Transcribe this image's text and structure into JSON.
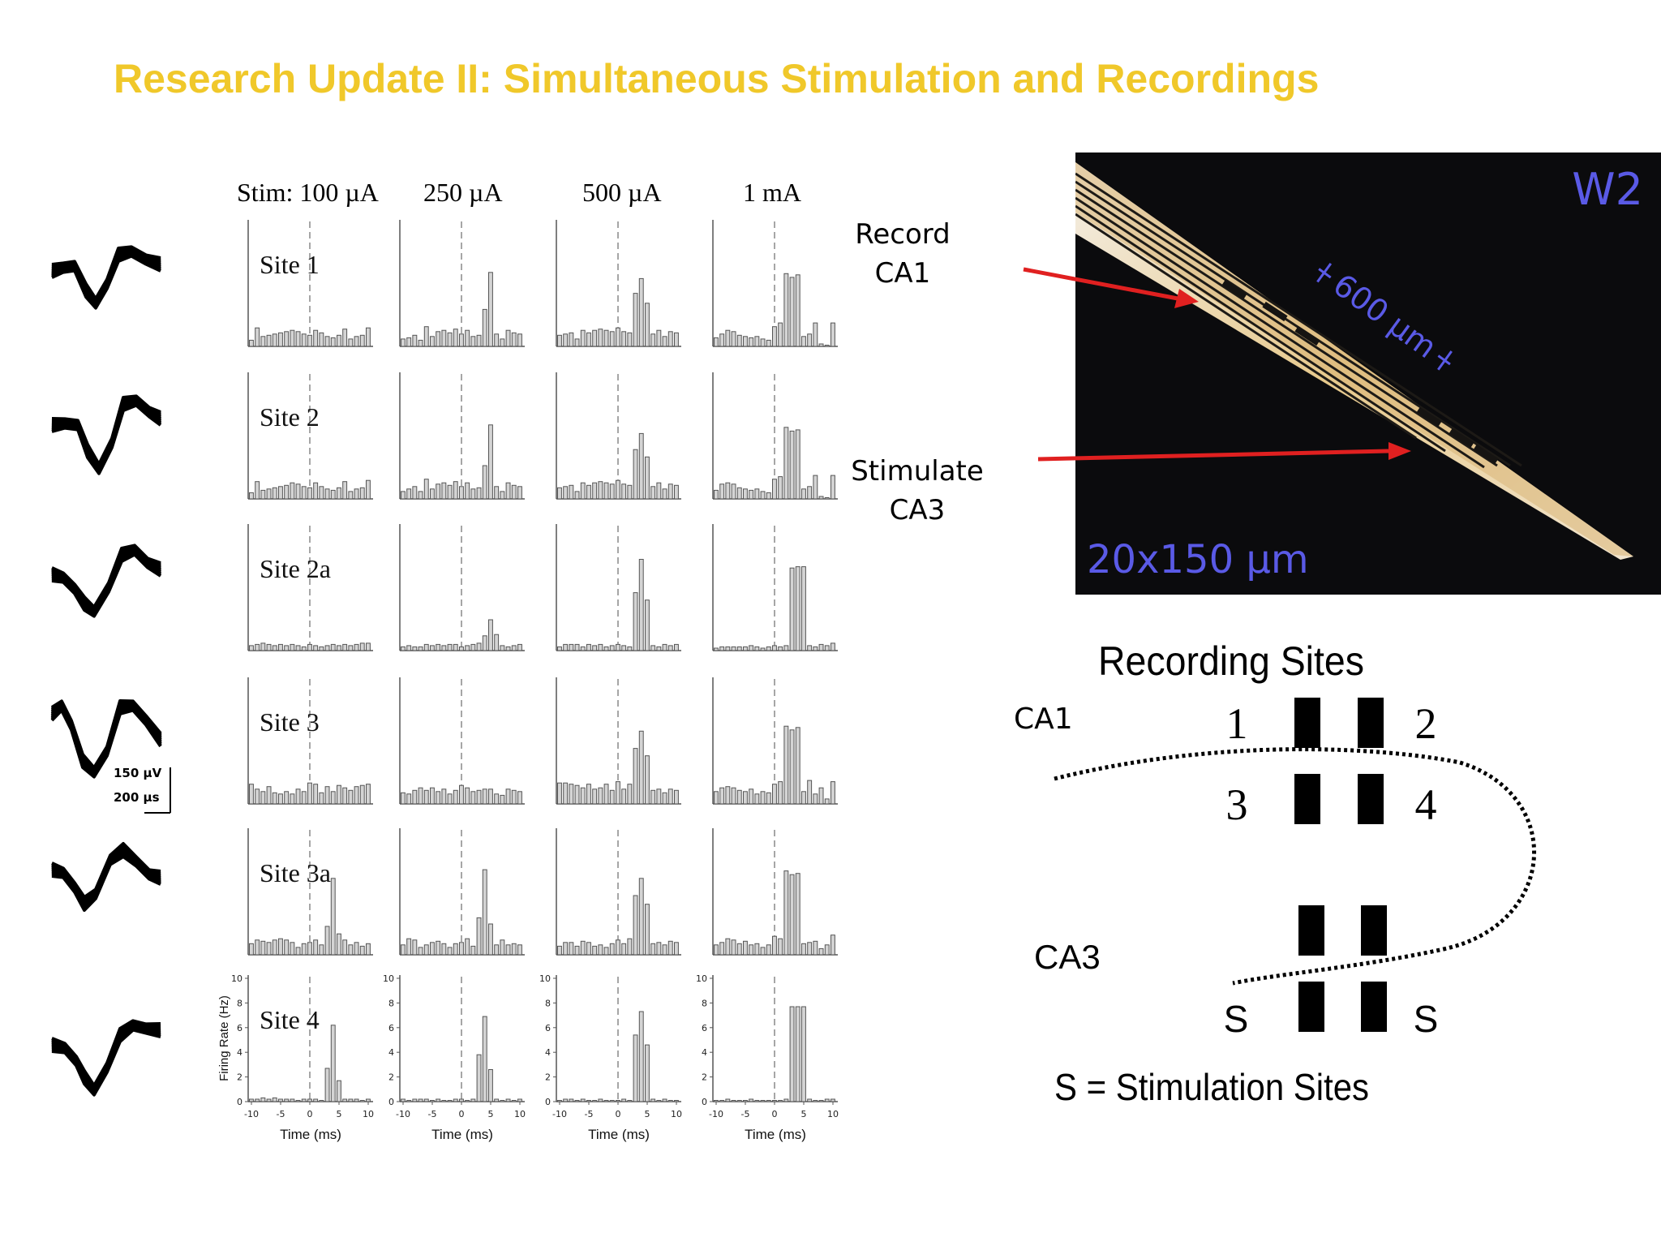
{
  "slide": {
    "title": "Research Update II: Simultaneous Stimulation and Recordings",
    "title_color": "#f0c82a"
  },
  "psth": {
    "stim_labels": [
      "Stim: 100 µA",
      "250 µA",
      "500 µA",
      "1 mA"
    ],
    "y_axis_label": "Firing Rate (Hz)",
    "x_axis_label": "Time (ms)",
    "y_ticks": [
      "0",
      "2",
      "4",
      "6",
      "8",
      "10"
    ],
    "x_ticks": [
      "-10",
      "-5",
      "0",
      "5",
      "10"
    ]
  },
  "chart_data": {
    "type": "bar",
    "description_key": "peri-stimulus histograms, rows = sites, columns = stimulus amplitude",
    "x": [
      -10,
      -9,
      -8,
      -7,
      -6,
      -5,
      -4,
      -3,
      -2,
      -1,
      0,
      1,
      2,
      3,
      4,
      5,
      6,
      7,
      8,
      9,
      10
    ],
    "xlabel": "Time (ms)",
    "ylabel": "Firing Rate (Hz)",
    "ylim": [
      0,
      10
    ],
    "xlim": [
      -10,
      10
    ],
    "rows": [
      {
        "site": "Site 1",
        "series": [
          {
            "name": "Stim: 100 µA",
            "values": [
              0.5,
              1.5,
              0.8,
              0.9,
              1.0,
              1.1,
              1.2,
              1.3,
              1.2,
              1.0,
              0.9,
              1.3,
              1.1,
              0.8,
              0.7,
              0.9,
              1.4,
              0.6,
              0.8,
              0.9,
              1.5
            ]
          },
          {
            "name": "250 µA",
            "values": [
              0.6,
              0.7,
              0.9,
              0.5,
              1.6,
              0.8,
              1.2,
              1.3,
              1.1,
              1.4,
              1.0,
              1.3,
              0.8,
              0.9,
              3.0,
              6.0,
              1.0,
              0.6,
              1.3,
              1.1,
              1.0
            ]
          },
          {
            "name": "500 µA",
            "values": [
              0.9,
              1.0,
              1.1,
              0.6,
              1.3,
              1.1,
              1.3,
              1.4,
              1.3,
              1.2,
              1.5,
              1.2,
              1.1,
              4.3,
              5.5,
              3.5,
              1.0,
              1.3,
              0.8,
              1.2,
              1.1
            ]
          },
          {
            "name": "1 mA",
            "values": [
              0.7,
              1.0,
              1.3,
              1.2,
              0.9,
              0.8,
              0.7,
              0.8,
              0.6,
              0.5,
              1.6,
              1.9,
              5.9,
              5.6,
              5.8,
              0.8,
              1.0,
              1.9,
              0.2,
              0.1,
              1.9
            ]
          }
        ]
      },
      {
        "site": "Site 2",
        "series": [
          {
            "name": "Stim: 100 µA",
            "values": [
              0.5,
              1.4,
              0.7,
              0.8,
              0.9,
              1.0,
              1.1,
              1.3,
              1.2,
              1.0,
              0.9,
              1.3,
              1.0,
              0.8,
              0.7,
              0.9,
              1.4,
              0.6,
              0.8,
              0.9,
              1.5
            ]
          },
          {
            "name": "250 µA",
            "values": [
              0.6,
              0.8,
              1.0,
              0.6,
              1.6,
              0.8,
              1.2,
              1.3,
              1.1,
              1.4,
              1.0,
              1.3,
              0.8,
              0.9,
              2.7,
              6.0,
              1.0,
              0.6,
              1.3,
              1.1,
              1.0
            ]
          },
          {
            "name": "500 µA",
            "values": [
              0.9,
              1.0,
              1.1,
              0.6,
              1.3,
              1.1,
              1.3,
              1.4,
              1.3,
              1.2,
              1.5,
              1.2,
              1.1,
              4.0,
              5.3,
              3.4,
              1.0,
              1.3,
              0.8,
              1.2,
              1.1
            ]
          },
          {
            "name": "1 mA",
            "values": [
              0.7,
              1.2,
              1.3,
              1.2,
              0.9,
              0.8,
              0.7,
              0.8,
              0.6,
              0.5,
              1.6,
              1.8,
              5.8,
              5.5,
              5.6,
              0.8,
              1.0,
              1.9,
              0.2,
              0.1,
              1.9
            ]
          }
        ]
      },
      {
        "site": "Site 2a",
        "series": [
          {
            "name": "Stim: 100 µA",
            "values": [
              0.4,
              0.5,
              0.6,
              0.5,
              0.4,
              0.5,
              0.4,
              0.5,
              0.4,
              0.3,
              0.5,
              0.4,
              0.3,
              0.4,
              0.5,
              0.4,
              0.5,
              0.4,
              0.5,
              0.6,
              0.6
            ]
          },
          {
            "name": "250 µA",
            "values": [
              0.3,
              0.4,
              0.3,
              0.3,
              0.5,
              0.4,
              0.5,
              0.4,
              0.5,
              0.5,
              0.3,
              0.4,
              0.5,
              0.6,
              1.2,
              2.5,
              1.3,
              0.4,
              0.3,
              0.4,
              0.5
            ]
          },
          {
            "name": "500 µA",
            "values": [
              0.3,
              0.5,
              0.5,
              0.5,
              0.3,
              0.5,
              0.4,
              0.5,
              0.3,
              0.4,
              0.5,
              0.4,
              0.3,
              4.7,
              7.4,
              4.1,
              0.4,
              0.3,
              0.5,
              0.4,
              0.5
            ]
          },
          {
            "name": "1 mA",
            "values": [
              0.2,
              0.3,
              0.3,
              0.3,
              0.3,
              0.3,
              0.4,
              0.3,
              0.2,
              0.3,
              0.4,
              0.3,
              0.4,
              6.7,
              6.8,
              6.8,
              0.4,
              0.3,
              0.5,
              0.4,
              0.6
            ]
          }
        ]
      },
      {
        "site": "Site 3",
        "series": [
          {
            "name": "Stim: 100 µA",
            "values": [
              1.6,
              1.2,
              1.0,
              1.4,
              0.9,
              0.8,
              1.0,
              0.8,
              1.2,
              1.0,
              1.7,
              1.6,
              0.9,
              1.4,
              1.0,
              1.5,
              1.3,
              1.1,
              1.4,
              1.5,
              1.6
            ]
          },
          {
            "name": "250 µA",
            "values": [
              0.9,
              0.8,
              1.1,
              1.3,
              1.1,
              1.3,
              1.0,
              1.2,
              0.8,
              1.1,
              1.5,
              1.3,
              1.0,
              1.1,
              1.2,
              1.2,
              0.8,
              0.7,
              1.2,
              1.1,
              1.0
            ]
          },
          {
            "name": "500 µA",
            "values": [
              1.7,
              1.7,
              1.6,
              1.5,
              1.3,
              1.6,
              1.2,
              1.3,
              1.6,
              1.1,
              1.8,
              1.2,
              1.6,
              4.5,
              5.9,
              3.9,
              1.1,
              1.2,
              0.9,
              1.2,
              1.1
            ]
          },
          {
            "name": "1 mA",
            "values": [
              1.0,
              1.3,
              1.4,
              1.3,
              1.1,
              1.0,
              1.2,
              0.8,
              1.0,
              0.9,
              1.6,
              1.8,
              6.3,
              6.0,
              6.2,
              1.0,
              1.9,
              0.8,
              1.3,
              0.4,
              1.8
            ]
          }
        ]
      },
      {
        "site": "Site 3a",
        "series": [
          {
            "name": "Stim: 100 µA",
            "values": [
              0.9,
              1.2,
              1.1,
              1.0,
              1.2,
              1.3,
              1.2,
              1.0,
              0.6,
              0.9,
              1.0,
              1.2,
              0.8,
              2.3,
              6.2,
              1.7,
              1.2,
              0.8,
              1.0,
              0.7,
              0.9
            ]
          },
          {
            "name": "250 µA",
            "values": [
              0.8,
              1.3,
              1.2,
              0.6,
              0.8,
              1.0,
              1.1,
              0.9,
              0.6,
              0.9,
              1.0,
              1.3,
              0.7,
              3.0,
              6.9,
              2.5,
              0.8,
              1.2,
              0.8,
              0.9,
              0.8
            ]
          },
          {
            "name": "500 µA",
            "values": [
              0.7,
              1.0,
              1.0,
              0.7,
              1.1,
              1.0,
              0.7,
              0.8,
              0.6,
              0.9,
              1.2,
              0.9,
              1.3,
              4.8,
              6.2,
              4.1,
              0.9,
              1.0,
              0.8,
              1.1,
              1.0
            ]
          },
          {
            "name": "1 mA",
            "values": [
              0.8,
              1.0,
              1.3,
              1.2,
              0.9,
              1.1,
              0.8,
              0.9,
              0.6,
              0.8,
              1.5,
              1.3,
              6.8,
              6.5,
              6.6,
              0.9,
              1.0,
              1.1,
              0.5,
              0.8,
              1.6
            ]
          }
        ]
      },
      {
        "site": "Site 4",
        "series": [
          {
            "name": "Stim: 100 µA",
            "values": [
              0.2,
              0.2,
              0.3,
              0.2,
              0.3,
              0.2,
              0.2,
              0.2,
              0.1,
              0.2,
              0.2,
              0.2,
              0.1,
              2.7,
              6.2,
              1.7,
              0.2,
              0.2,
              0.2,
              0.1,
              0.2
            ]
          },
          {
            "name": "250 µA",
            "values": [
              0.2,
              0.1,
              0.2,
              0.2,
              0.2,
              0.1,
              0.2,
              0.1,
              0.1,
              0.2,
              0.2,
              0.1,
              0.2,
              3.8,
              6.9,
              2.6,
              0.2,
              0.1,
              0.2,
              0.1,
              0.2
            ]
          },
          {
            "name": "500 µA",
            "values": [
              0.1,
              0.2,
              0.2,
              0.1,
              0.2,
              0.1,
              0.1,
              0.2,
              0.1,
              0.1,
              0.1,
              0.2,
              0.1,
              5.4,
              7.3,
              4.6,
              0.2,
              0.1,
              0.2,
              0.1,
              0.1
            ]
          },
          {
            "name": "1 mA",
            "values": [
              0.1,
              0.1,
              0.2,
              0.1,
              0.1,
              0.1,
              0.2,
              0.1,
              0.1,
              0.1,
              0.1,
              0.1,
              0.2,
              7.7,
              7.7,
              7.7,
              0.2,
              0.1,
              0.1,
              0.2,
              0.2
            ]
          }
        ]
      }
    ]
  },
  "waveform_scale": {
    "amplitude": "150 µV",
    "time": "200 µs"
  },
  "probe_photo": {
    "label": "W2",
    "label_color": "#5a5ae6",
    "length_marker": "600 µm",
    "size_label": "20x150 µm"
  },
  "annotations": {
    "record_line1": "Record",
    "record_line2": "CA1",
    "stimulate_line1": "Stimulate",
    "stimulate_line2": "CA3",
    "arrow_color": "#e02020"
  },
  "diagram": {
    "title": "Recording Sites",
    "ca1_label": "CA1",
    "ca3_label": "CA3",
    "site_numbers": [
      "1",
      "2",
      "3",
      "4"
    ],
    "stim_site_labels": [
      "S",
      "S"
    ],
    "legend": "S = Stimulation Sites"
  }
}
